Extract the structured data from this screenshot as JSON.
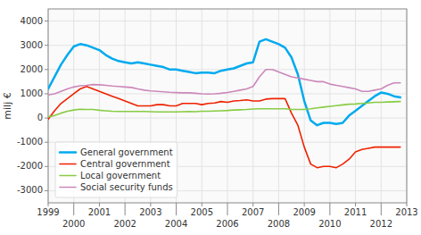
{
  "chart_data": {
    "type": "line",
    "y_label": "milj €",
    "x": [
      1999.0,
      1999.25,
      1999.5,
      1999.75,
      2000.0,
      2000.25,
      2000.5,
      2000.75,
      2001.0,
      2001.25,
      2001.5,
      2001.75,
      2002.0,
      2002.25,
      2002.5,
      2002.75,
      2003.0,
      2003.25,
      2003.5,
      2003.75,
      2004.0,
      2004.25,
      2004.5,
      2004.75,
      2005.0,
      2005.25,
      2005.5,
      2005.75,
      2006.0,
      2006.25,
      2006.5,
      2006.75,
      2007.0,
      2007.25,
      2007.5,
      2007.75,
      2008.0,
      2008.25,
      2008.5,
      2008.75,
      2009.0,
      2009.25,
      2009.5,
      2009.75,
      2010.0,
      2010.25,
      2010.5,
      2010.75,
      2011.0,
      2011.25,
      2011.5,
      2011.75,
      2012.0,
      2012.25,
      2012.5,
      2012.75
    ],
    "series": [
      {
        "name": "General government",
        "color": "#00aaee",
        "values": [
          1200,
          1700,
          2200,
          2600,
          2950,
          3050,
          3000,
          2900,
          2800,
          2600,
          2450,
          2350,
          2300,
          2250,
          2300,
          2250,
          2200,
          2150,
          2100,
          2000,
          2000,
          1950,
          1900,
          1850,
          1870,
          1870,
          1850,
          1950,
          2000,
          2050,
          2150,
          2250,
          2300,
          3150,
          3250,
          3150,
          3050,
          2900,
          2500,
          1800,
          700,
          -100,
          -300,
          -200,
          -200,
          -250,
          -200,
          100,
          300,
          500,
          700,
          900,
          1050,
          1000,
          900,
          850
        ]
      },
      {
        "name": "Central government",
        "color": "#ee2200",
        "values": [
          -50,
          300,
          600,
          800,
          1000,
          1200,
          1300,
          1200,
          1100,
          1000,
          900,
          800,
          700,
          600,
          500,
          500,
          500,
          550,
          550,
          500,
          500,
          600,
          600,
          600,
          550,
          600,
          620,
          680,
          650,
          700,
          720,
          750,
          700,
          700,
          780,
          800,
          800,
          800,
          200,
          -300,
          -1200,
          -1900,
          -2050,
          -2000,
          -2000,
          -2050,
          -1900,
          -1700,
          -1400,
          -1300,
          -1250,
          -1200,
          -1200,
          -1200,
          -1200,
          -1200
        ]
      },
      {
        "name": "Local government",
        "color": "#88cc44",
        "values": [
          50,
          100,
          200,
          280,
          330,
          360,
          350,
          350,
          320,
          300,
          280,
          270,
          270,
          270,
          270,
          270,
          260,
          250,
          250,
          250,
          250,
          260,
          270,
          260,
          280,
          280,
          290,
          300,
          310,
          330,
          340,
          350,
          370,
          380,
          380,
          380,
          380,
          380,
          350,
          350,
          350,
          380,
          420,
          450,
          480,
          510,
          540,
          570,
          580,
          600,
          620,
          650,
          650,
          660,
          670,
          680
        ]
      },
      {
        "name": "Social security funds",
        "color": "#cc88bb",
        "values": [
          950,
          1000,
          1100,
          1200,
          1280,
          1330,
          1350,
          1380,
          1370,
          1350,
          1320,
          1300,
          1280,
          1260,
          1200,
          1150,
          1120,
          1100,
          1080,
          1060,
          1050,
          1040,
          1040,
          1020,
          1000,
          990,
          1000,
          1020,
          1050,
          1100,
          1150,
          1200,
          1300,
          1700,
          2000,
          2000,
          1900,
          1800,
          1700,
          1650,
          1600,
          1550,
          1500,
          1500,
          1400,
          1350,
          1300,
          1250,
          1200,
          1100,
          1100,
          1150,
          1200,
          1350,
          1450,
          1450
        ]
      }
    ],
    "xlim": [
      1999.0,
      2013.0
    ],
    "xticks": [
      1999,
      2000,
      2001,
      2002,
      2003,
      2004,
      2005,
      2006,
      2007,
      2008,
      2009,
      2010,
      2011,
      2012,
      2013
    ],
    "ylim": [
      -3500,
      4500
    ],
    "yticks": [
      -3000,
      -2000,
      -1000,
      0,
      1000,
      2000,
      3000,
      4000
    ],
    "grid": true,
    "legend": "lower left"
  }
}
